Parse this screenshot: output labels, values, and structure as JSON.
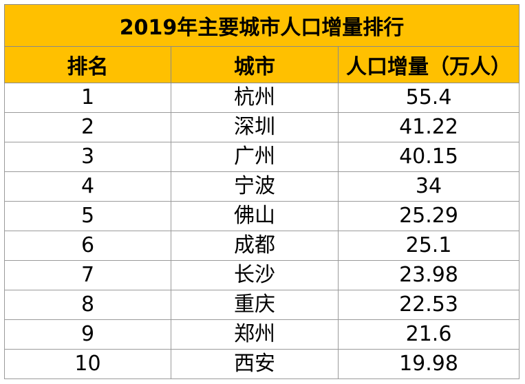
{
  "sheet": {
    "title": "2019年主要城市人口增量排行",
    "headers": {
      "rank": "排名",
      "city": "城市",
      "increase": "人口增量（万人）"
    },
    "rows": [
      {
        "rank": "1",
        "city": "杭州",
        "increase": "55.4"
      },
      {
        "rank": "2",
        "city": "深圳",
        "increase": "41.22"
      },
      {
        "rank": "3",
        "city": "广州",
        "increase": "40.15"
      },
      {
        "rank": "4",
        "city": "宁波",
        "increase": "34"
      },
      {
        "rank": "5",
        "city": "佛山",
        "increase": "25.29"
      },
      {
        "rank": "6",
        "city": "成都",
        "increase": "25.1"
      },
      {
        "rank": "7",
        "city": "长沙",
        "increase": "23.98"
      },
      {
        "rank": "8",
        "city": "重庆",
        "increase": "22.53"
      },
      {
        "rank": "9",
        "city": "郑州",
        "increase": "21.6"
      },
      {
        "rank": "10",
        "city": "西安",
        "increase": "19.98"
      }
    ],
    "colors": {
      "header_fill": "#ffc000",
      "grid": "#9a9a9a"
    }
  }
}
